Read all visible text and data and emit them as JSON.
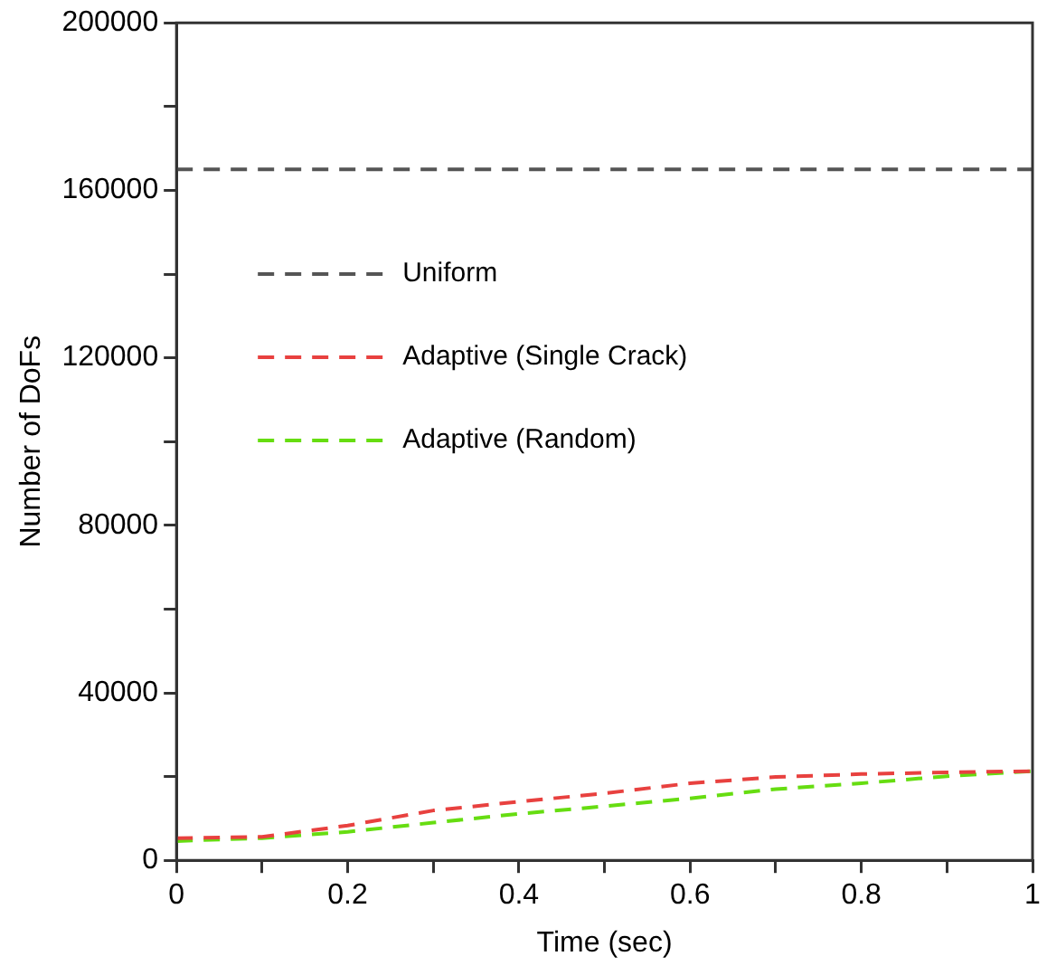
{
  "chart_data": {
    "type": "line",
    "xlabel": "Time (sec)",
    "ylabel": "Number of DoFs",
    "x": [
      0,
      0.1,
      0.2,
      0.3,
      0.4,
      0.5,
      0.6,
      0.7,
      0.8,
      0.9,
      1
    ],
    "series": [
      {
        "name": "Uniform",
        "color": "#555555",
        "line_style": "dashed",
        "values": [
          165000,
          165000,
          165000,
          165000,
          165000,
          165000,
          165000,
          165000,
          165000,
          165000,
          165000
        ]
      },
      {
        "name": "Adaptive (Single Crack)",
        "color": "#e8413f",
        "line_style": "dashed",
        "values": [
          5300,
          5600,
          8300,
          11900,
          14000,
          16000,
          18400,
          19900,
          20600,
          21000,
          21300
        ]
      },
      {
        "name": "Adaptive (Random)",
        "color": "#66dd11",
        "line_style": "dashed",
        "values": [
          4600,
          5300,
          6800,
          9000,
          11100,
          12900,
          14800,
          17000,
          18400,
          20100,
          21300
        ]
      }
    ],
    "xlim": [
      0,
      1
    ],
    "xticks": [
      0,
      {
        "value": 0.1,
        "label": null
      },
      0.2,
      {
        "value": 0.3,
        "label": null
      },
      0.4,
      {
        "value": 0.5,
        "label": null
      },
      0.6,
      {
        "value": 0.7,
        "label": null
      },
      0.8,
      {
        "value": 0.9,
        "label": null
      },
      1
    ],
    "ylim": [
      0,
      200000
    ],
    "yticks": [
      0,
      {
        "value": 20000,
        "label": null
      },
      40000,
      {
        "value": 60000,
        "label": null
      },
      80000,
      {
        "value": 100000,
        "label": null
      },
      120000,
      {
        "value": 140000,
        "label": null
      },
      160000,
      {
        "value": 180000,
        "label": null
      },
      200000
    ],
    "grid": false,
    "legend": "left",
    "marker": "none"
  }
}
